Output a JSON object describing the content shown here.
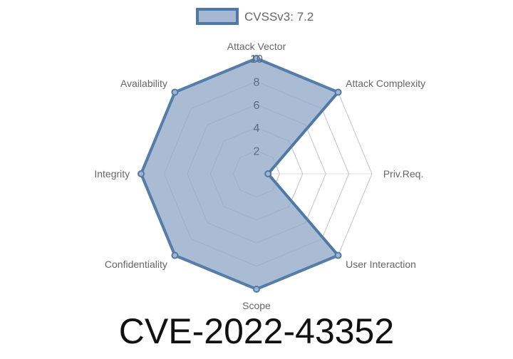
{
  "chart_data": {
    "type": "radar",
    "title": "CVE-2022-43352",
    "categories": [
      "Attack Vector",
      "Attack Complexity",
      "Priv.Req.",
      "User Interaction",
      "Scope",
      "Confidentiality",
      "Integrity",
      "Availability"
    ],
    "series": [
      {
        "name": "CVSSv3: 7.2",
        "values": [
          10,
          10,
          1,
          10,
          10,
          10,
          10,
          10
        ]
      }
    ],
    "rlim": [
      0,
      10
    ],
    "ticks": [
      "2",
      "4",
      "6",
      "8",
      "10"
    ],
    "tick_values": [
      2,
      4,
      6,
      8,
      10
    ],
    "grid": true,
    "legend": "top",
    "colors": {
      "line": "#4e79a7",
      "fill": "#a5b8d2",
      "grid": "#dddddd"
    }
  }
}
